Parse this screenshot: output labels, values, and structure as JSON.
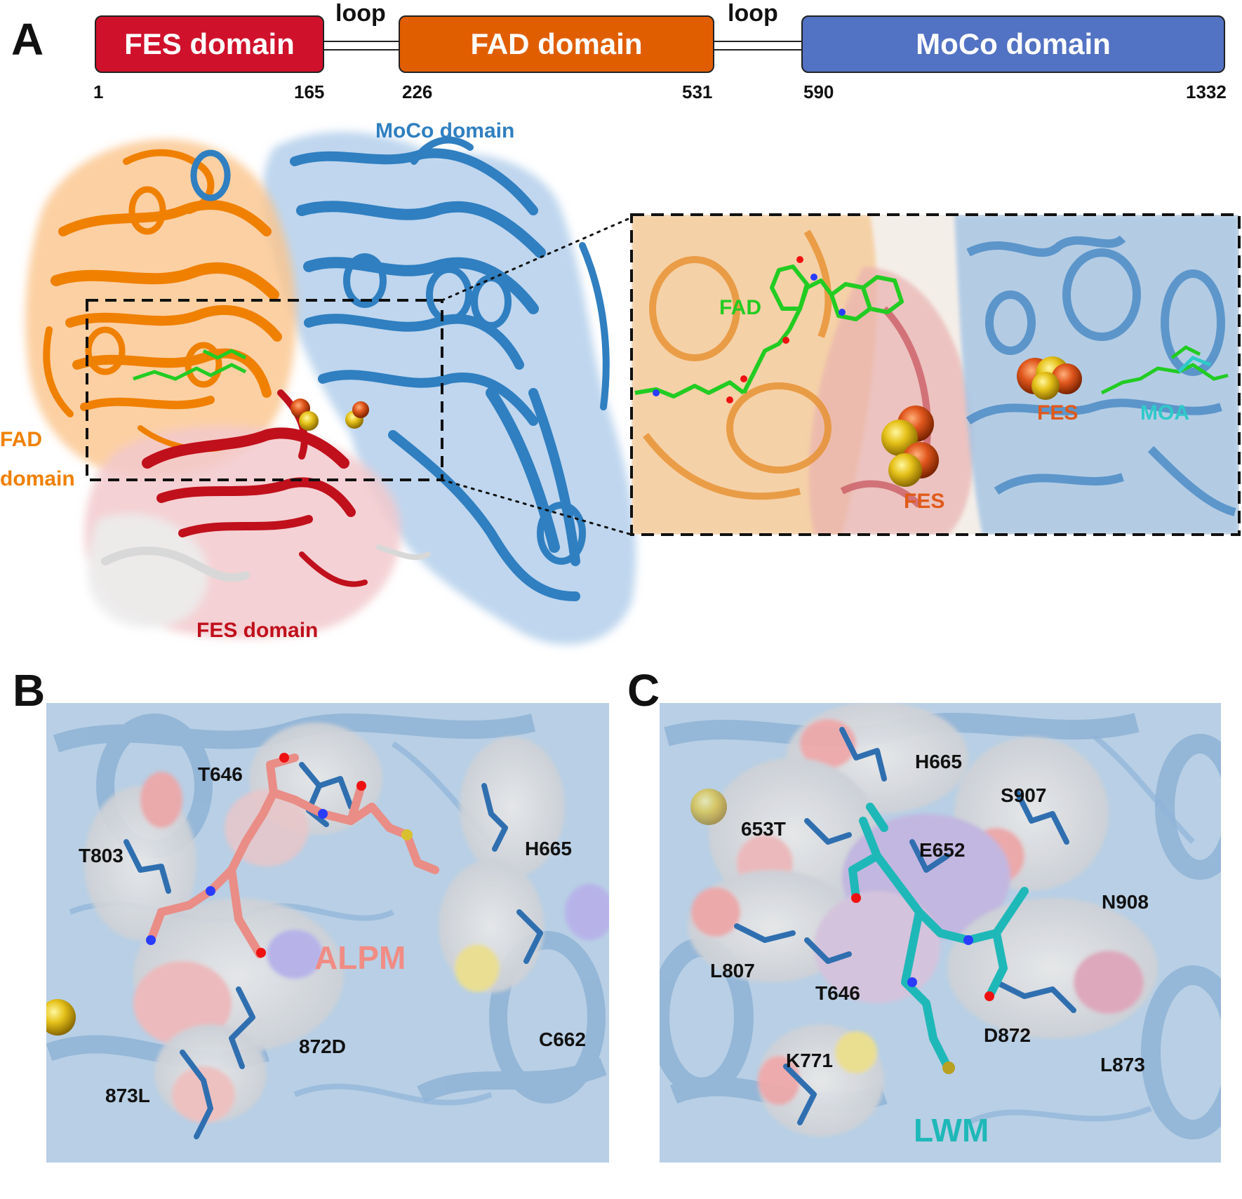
{
  "panel_a": {
    "letter": "A",
    "bar": {
      "fes_label": "FES domain",
      "fad_label": "FAD domain",
      "moco_label": "MoCo domain",
      "loop1": "loop",
      "loop2": "loop",
      "ticks": [
        "1",
        "165",
        "226",
        "531",
        "590",
        "1332"
      ]
    },
    "structure_labels": {
      "moco": "MoCo domain",
      "fad_line1": "FAD",
      "fad_line2": "domain",
      "fes": "FES domain"
    },
    "inset_labels": {
      "fad": "FAD",
      "fes_left": "FES",
      "fes_right": "FES",
      "moa": "MOA"
    }
  },
  "panel_b": {
    "letter": "B",
    "ligand": "ALPM",
    "residues": [
      "T646",
      "T803",
      "H665",
      "872D",
      "873L",
      "C662"
    ]
  },
  "panel_c": {
    "letter": "C",
    "ligand": "LWM",
    "residues": [
      "H665",
      "S907",
      "653T",
      "E652",
      "N908",
      "L807",
      "T646",
      "D872",
      "L873",
      "K771"
    ]
  },
  "colors": {
    "fes": "#d0112b",
    "fad": "#e05e00",
    "moco": "#5272c3",
    "fad_struct": "#f08000",
    "moco_struct": "#2f7fc1",
    "fes_struct": "#c0101c",
    "fad_ligand": "#22cc22",
    "moa": "#2fc9c9",
    "alpm": "#f08c84",
    "lwm": "#1fb8b8"
  }
}
